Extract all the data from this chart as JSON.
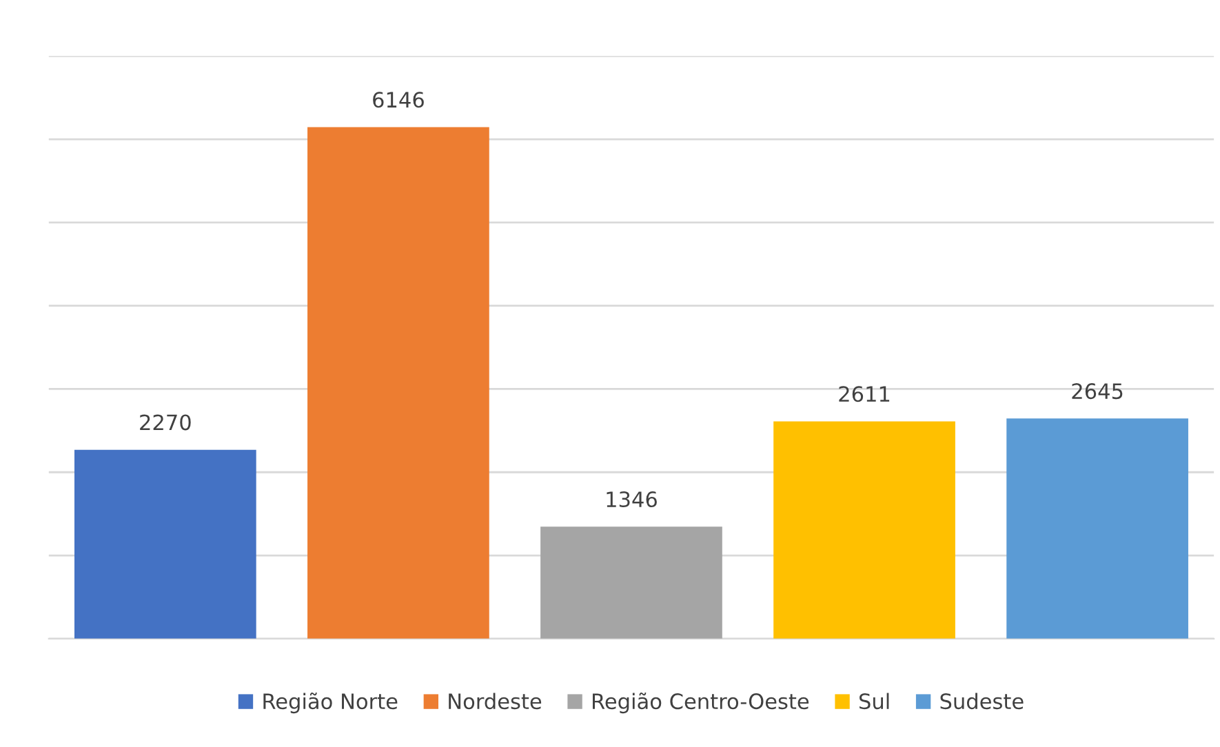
{
  "chart_data": {
    "type": "bar",
    "categories": [
      null
    ],
    "series": [
      {
        "name": "Região Norte",
        "color": "#4472c4",
        "values": [
          2270
        ]
      },
      {
        "name": "Nordeste",
        "color": "#ed7d31",
        "values": [
          6146
        ]
      },
      {
        "name": "Região Centro-Oeste",
        "color": "#a5a5a5",
        "values": [
          1346
        ]
      },
      {
        "name": "Sul",
        "color": "#ffc000",
        "values": [
          2611
        ]
      },
      {
        "name": "Sudeste",
        "color": "#5b9bd5",
        "values": [
          2645
        ]
      }
    ],
    "ylim": [
      0,
      7000
    ],
    "yticks": [
      {
        "value": 0,
        "label": null
      },
      {
        "value": 1000,
        "label": null
      },
      {
        "value": 2000,
        "label": null
      },
      {
        "value": 3000,
        "label": null
      },
      {
        "value": 4000,
        "label": null
      },
      {
        "value": 5000,
        "label": null
      },
      {
        "value": 6000,
        "label": null
      },
      {
        "value": 7000,
        "label": null
      }
    ],
    "grid": "y",
    "legend": "bottom",
    "data_labels": true
  }
}
